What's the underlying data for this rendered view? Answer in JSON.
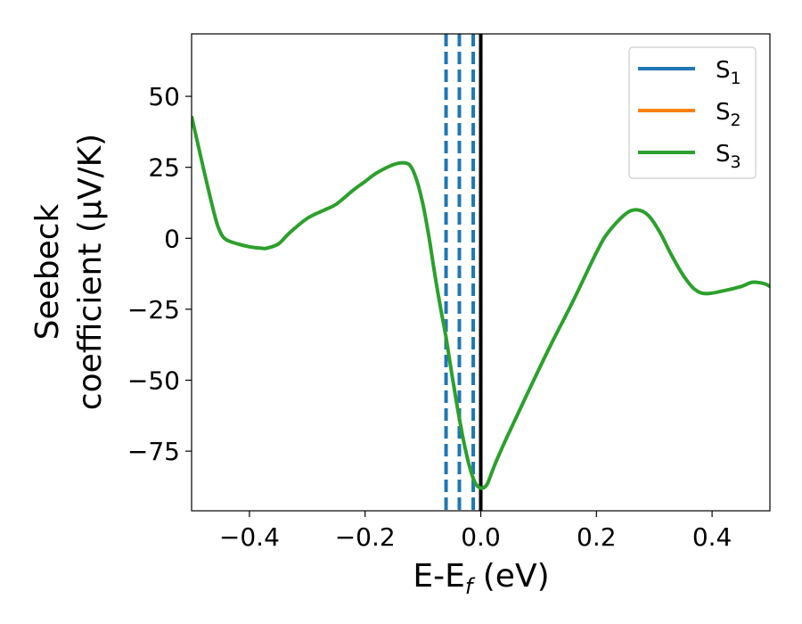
{
  "chart_data": {
    "type": "line",
    "xlabel": "E-E",
    "xlabel_sub": "f",
    "xlabel_unit": " (eV)",
    "ylabel_line1": "Seebeck",
    "ylabel_line2": "coefficient  (μV/K)",
    "xlim": [
      -0.5,
      0.5
    ],
    "ylim": [
      -96,
      72
    ],
    "xticks": [
      -0.4,
      -0.2,
      0.0,
      0.2,
      0.4
    ],
    "xtick_labels": [
      "−0.4",
      "−0.2",
      "0.0",
      "0.2",
      "0.4"
    ],
    "yticks": [
      50,
      25,
      0,
      -25,
      -50,
      -75
    ],
    "ytick_labels": [
      "50",
      "25",
      "0",
      "−25",
      "−50",
      "−75"
    ],
    "legend_position": "top-right",
    "series": [
      {
        "name": "S",
        "subscript": "1",
        "color": "#1f77b4"
      },
      {
        "name": "S",
        "subscript": "2",
        "color": "#ff7f0e"
      },
      {
        "name": "S",
        "subscript": "3",
        "color": "#2ca02c",
        "x": [
          -0.5,
          -0.48,
          -0.46,
          -0.45,
          -0.44,
          -0.42,
          -0.4,
          -0.38,
          -0.37,
          -0.35,
          -0.33,
          -0.3,
          -0.27,
          -0.25,
          -0.22,
          -0.2,
          -0.18,
          -0.15,
          -0.13,
          -0.12,
          -0.11,
          -0.1,
          -0.09,
          -0.08,
          -0.07,
          -0.06,
          -0.05,
          -0.04,
          -0.03,
          -0.02,
          -0.01,
          0.0,
          0.01,
          0.02,
          0.03,
          0.05,
          0.08,
          0.12,
          0.16,
          0.2,
          0.22,
          0.25,
          0.27,
          0.29,
          0.31,
          0.33,
          0.35,
          0.37,
          0.39,
          0.42,
          0.45,
          0.47,
          0.49,
          0.5
        ],
        "y": [
          43,
          25,
          8,
          2,
          -0.5,
          -2,
          -3,
          -3.5,
          -3.5,
          -2,
          2,
          7,
          10,
          12,
          17,
          20,
          23,
          26,
          26.5,
          25,
          20,
          12,
          1,
          -12,
          -24,
          -35,
          -48,
          -60,
          -71,
          -80,
          -86,
          -88,
          -87,
          -82,
          -77,
          -68,
          -55,
          -38,
          -22,
          -5,
          2,
          8.5,
          10,
          8,
          2,
          -6,
          -13,
          -18,
          -19.5,
          -18.5,
          -17,
          -15.5,
          -16,
          -17
        ]
      }
    ],
    "reference_lines": [
      {
        "x": 0.0,
        "style": "solid",
        "color": "#000000"
      },
      {
        "x": -0.06,
        "style": "dashed",
        "color": "#1f77b4"
      },
      {
        "x": -0.037,
        "style": "dashed",
        "color": "#1f77b4"
      },
      {
        "x": -0.013,
        "style": "dashed",
        "color": "#1f77b4"
      }
    ]
  }
}
